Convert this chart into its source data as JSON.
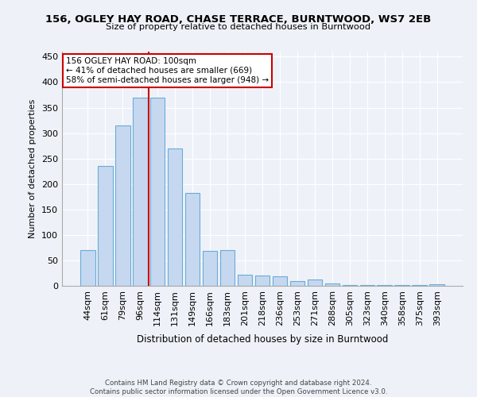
{
  "title": "156, OGLEY HAY ROAD, CHASE TERRACE, BURNTWOOD, WS7 2EB",
  "subtitle": "Size of property relative to detached houses in Burntwood",
  "xlabel": "Distribution of detached houses by size in Burntwood",
  "ylabel": "Number of detached properties",
  "bar_labels": [
    "44sqm",
    "61sqm",
    "79sqm",
    "96sqm",
    "114sqm",
    "131sqm",
    "149sqm",
    "166sqm",
    "183sqm",
    "201sqm",
    "218sqm",
    "236sqm",
    "253sqm",
    "271sqm",
    "288sqm",
    "305sqm",
    "323sqm",
    "340sqm",
    "358sqm",
    "375sqm",
    "393sqm"
  ],
  "bar_values": [
    70,
    236,
    315,
    370,
    370,
    270,
    182,
    68,
    70,
    22,
    20,
    18,
    10,
    12,
    5,
    2,
    1,
    1,
    1,
    1,
    3
  ],
  "bar_color": "#c5d8f0",
  "bar_edge_color": "#6aabd8",
  "vline_color": "#cc0000",
  "annotation_text": "156 OGLEY HAY ROAD: 100sqm\n← 41% of detached houses are smaller (669)\n58% of semi-detached houses are larger (948) →",
  "annotation_box_color": "#ffffff",
  "annotation_box_edge": "#cc0000",
  "background_color": "#eef2f8",
  "grid_color": "#ffffff",
  "footer": "Contains HM Land Registry data © Crown copyright and database right 2024.\nContains public sector information licensed under the Open Government Licence v3.0.",
  "ylim": [
    0,
    460
  ],
  "yticks": [
    0,
    50,
    100,
    150,
    200,
    250,
    300,
    350,
    400,
    450
  ],
  "vline_index": 4
}
